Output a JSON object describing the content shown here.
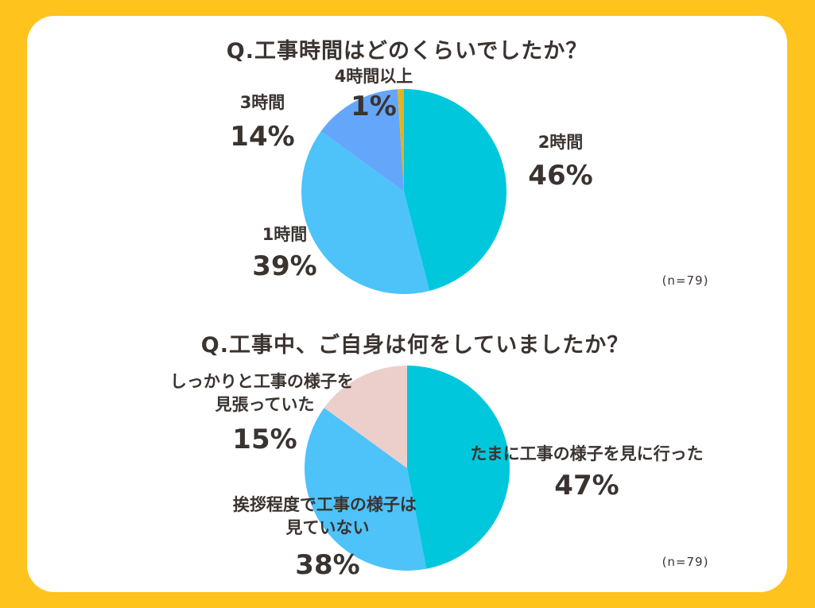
{
  "chart_data": [
    {
      "type": "pie",
      "title": "Q.工事時間はどのくらいでしたか？",
      "sample": "(n=79)",
      "slices": [
        {
          "name": "2時間",
          "value": 46,
          "label": "46%",
          "color": "#00C7DC"
        },
        {
          "name": "1時間",
          "value": 39,
          "label": "39%",
          "color": "#4DC3FA"
        },
        {
          "name": "3時間",
          "value": 14,
          "label": "14%",
          "color": "#64A6FA"
        },
        {
          "name": "4時間以上",
          "value": 1,
          "label": "1%",
          "color": "#E3B31E"
        }
      ]
    },
    {
      "type": "pie",
      "title": "Q.工事中、ご自身は何をしていましたか？",
      "sample": "(n=79)",
      "slices": [
        {
          "name": "たまに工事の様子を見に行った",
          "value": 47,
          "label": "47%",
          "color": "#00C7DC"
        },
        {
          "name": "挨拶程度で工事の様子は見ていない",
          "value": 38,
          "label": "38%",
          "color": "#4DC3FA"
        },
        {
          "name": "しっかりと工事の様子を見張っていた",
          "value": 15,
          "label": "15%",
          "color": "#ECCFCB"
        }
      ]
    }
  ],
  "labels": {
    "c1_s0": [
      "2時間"
    ],
    "c1_s1": [
      "1時間"
    ],
    "c1_s2": [
      "3時間"
    ],
    "c1_s3": [
      "4時間以上"
    ],
    "c2_s0": [
      "たまに工事の様子を見に行った"
    ],
    "c2_s1": [
      "挨拶程度で工事の様子は",
      "見ていない"
    ],
    "c2_s2": [
      "しっかりと工事の様子を",
      "見張っていた"
    ]
  },
  "colors": {
    "background": "#FFC31E",
    "card": "#ffffff",
    "text": "#3a3330"
  }
}
